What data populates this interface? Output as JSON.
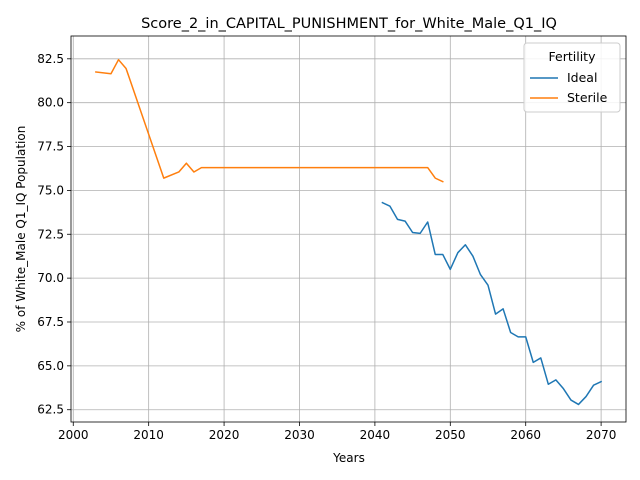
{
  "chart_data": {
    "type": "line",
    "title": "Score_2_in_CAPITAL_PUNISHMENT_for_White_Male_Q1_IQ",
    "xlabel": "Years",
    "ylabel": "% of White_Male Q1_IQ Population",
    "xlim": [
      1999.7,
      2073.3
    ],
    "ylim": [
      61.8,
      83.8
    ],
    "xticks": [
      2000,
      2010,
      2020,
      2030,
      2040,
      2050,
      2060,
      2070
    ],
    "yticks": [
      62.5,
      65.0,
      67.5,
      70.0,
      72.5,
      75.0,
      77.5,
      80.0,
      82.5
    ],
    "grid": true,
    "legend": {
      "title": "Fertility",
      "position": "top-right"
    },
    "series": [
      {
        "name": "Ideal",
        "color": "#1f77b4",
        "points": [
          [
            2041,
            74.3
          ],
          [
            2042,
            74.1
          ],
          [
            2043,
            73.35
          ],
          [
            2044,
            73.25
          ],
          [
            2045,
            72.6
          ],
          [
            2046,
            72.55
          ],
          [
            2047,
            73.2
          ],
          [
            2048,
            71.35
          ],
          [
            2049,
            71.35
          ],
          [
            2050,
            70.5
          ],
          [
            2051,
            71.45
          ],
          [
            2052,
            71.9
          ],
          [
            2053,
            71.25
          ],
          [
            2054,
            70.2
          ],
          [
            2055,
            69.6
          ],
          [
            2056,
            67.95
          ],
          [
            2057,
            68.25
          ],
          [
            2058,
            66.9
          ],
          [
            2059,
            66.65
          ],
          [
            2060,
            66.65
          ],
          [
            2061,
            65.2
          ],
          [
            2062,
            65.45
          ],
          [
            2063,
            63.95
          ],
          [
            2064,
            64.2
          ],
          [
            2065,
            63.7
          ],
          [
            2066,
            63.05
          ],
          [
            2067,
            62.8
          ],
          [
            2068,
            63.25
          ],
          [
            2069,
            63.9
          ],
          [
            2070,
            64.1
          ]
        ]
      },
      {
        "name": "Sterile",
        "color": "#ff7f0e",
        "points": [
          [
            2003,
            81.75
          ],
          [
            2005,
            81.65
          ],
          [
            2006,
            82.45
          ],
          [
            2007,
            81.95
          ],
          [
            2012,
            75.7
          ],
          [
            2014,
            76.05
          ],
          [
            2015,
            76.55
          ],
          [
            2016,
            76.05
          ],
          [
            2017,
            76.3
          ],
          [
            2047,
            76.3
          ],
          [
            2048,
            75.7
          ],
          [
            2049,
            75.5
          ]
        ]
      }
    ]
  }
}
